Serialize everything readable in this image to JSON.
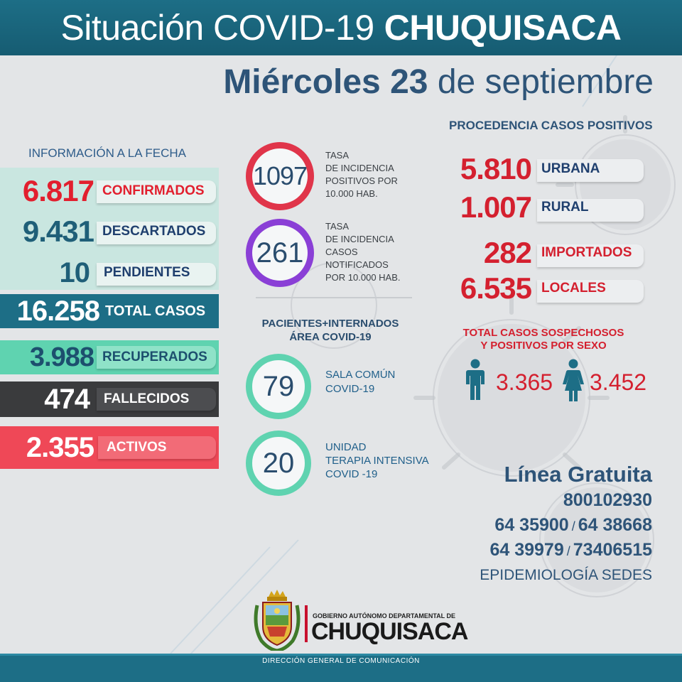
{
  "header": {
    "title_light": "Situación COVID-19",
    "title_bold": "CHUQUISACA",
    "date_bold": "Miércoles 23",
    "date_light": "de septiembre"
  },
  "left": {
    "heading": "INFORMACIÓN A LA FECHA",
    "confirmados": {
      "value": "6.817",
      "label": "CONFIRMADOS"
    },
    "descartados": {
      "value": "9.431",
      "label": "DESCARTADOS"
    },
    "pendientes": {
      "value": "10",
      "label": "PENDIENTES"
    },
    "total": {
      "value": "16.258",
      "label": "TOTAL CASOS"
    },
    "recuperados": {
      "value": "3.988",
      "label": "RECUPERADOS"
    },
    "fallecidos": {
      "value": "474",
      "label": "FALLECIDOS"
    },
    "activos": {
      "value": "2.355",
      "label": "ACTIVOS"
    }
  },
  "middle": {
    "incidencia_positivos": {
      "value": "1097",
      "caption": "TASA\nDE INCIDENCIA\nPOSITIVOS POR\n10.000 HAB."
    },
    "incidencia_notificados": {
      "value": "261",
      "caption": "TASA\nDE INCIDENCIA\nCASOS\nNOTIFICADOS\nPOR 10.000 HAB."
    },
    "pacientes_heading": "PACIENTES+INTERNADOS\nÁREA COVID-19",
    "sala_comun": {
      "value": "79",
      "caption": "SALA COMÚN\nCOVID-19"
    },
    "uti": {
      "value": "20",
      "caption": "UNIDAD\nTERAPIA INTENSIVA\nCOVID -19"
    }
  },
  "right": {
    "heading": "PROCEDENCIA CASOS POSITIVOS",
    "urbana": {
      "value": "5.810",
      "label": "URBANA"
    },
    "rural": {
      "value": "1.007",
      "label": "RURAL"
    },
    "importados": {
      "value": "282",
      "label": "IMPORTADOS"
    },
    "locales": {
      "value": "6.535",
      "label": "LOCALES"
    },
    "sex_heading": "TOTAL CASOS SOSPECHOSOS\nY POSITIVOS POR SEXO",
    "male_value": "3.365",
    "female_value": "3.452",
    "hotline_title": "Línea Gratuita",
    "hotline_1": "800102930",
    "hotline_2a": "64 35900",
    "hotline_2b": "64 38668",
    "hotline_3a": "64 39979",
    "hotline_3b": "73406515",
    "separator": "/",
    "epidemiologia": "EPIDEMIOLOGÍA SEDES"
  },
  "footer": {
    "gov_small": "GOBIERNO AUTÓNOMO DEPARTAMENTAL DE",
    "gov_big": "CHUQUISACA",
    "direccion": "DIRECCIÓN GENERAL DE COMUNICACIÓN"
  },
  "colors": {
    "teal": "#1d6e86",
    "navy": "#2e5478",
    "red": "#d4202f",
    "mint": "#5fd3b0",
    "dark": "#3a3b3d",
    "coral": "#ef4857",
    "purple": "#8a3fd6"
  },
  "icons": [
    "male-icon",
    "female-icon",
    "coat-of-arms-icon",
    "virus-icon"
  ]
}
